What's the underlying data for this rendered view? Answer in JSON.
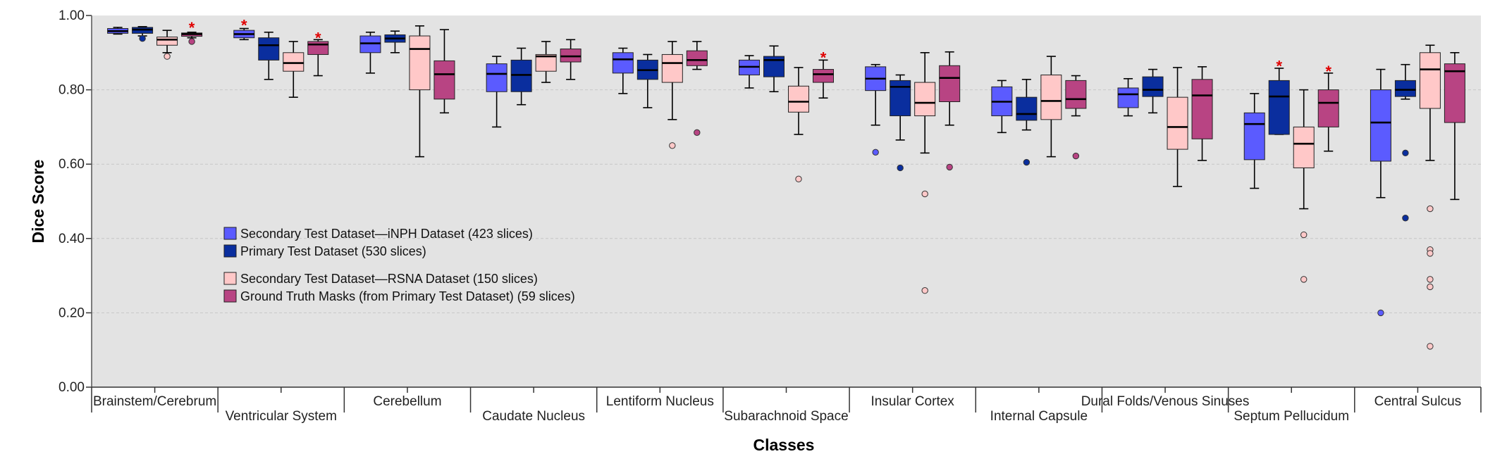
{
  "chart_data": {
    "type": "boxplot",
    "title": "",
    "xlabel": "Classes",
    "ylabel": "Dice Score",
    "ylim": [
      0,
      1
    ],
    "yticks": [
      "0.00",
      "0.20",
      "0.40",
      "0.60",
      "0.80",
      "1.00"
    ],
    "grid": true,
    "legend_position": "left-middle",
    "categories": [
      "Brainstem/Cerebrum",
      "Ventricular System",
      "Cerebellum",
      "Caudate Nucleus",
      "Lentiform Nucleus",
      "Subarachnoid Space",
      "Insular Cortex",
      "Internal Capsule",
      "Dural Folds/Venous Sinuses",
      "Septum Pellucidum",
      "Central Sulcus"
    ],
    "series": [
      {
        "name": "Secondary Test Dataset—iNPH Dataset (423 slices)",
        "color": "#5b5bff",
        "median_color": "#000000",
        "boxes": [
          {
            "whislo": 0.95,
            "q1": 0.952,
            "med": 0.958,
            "q3": 0.965,
            "whishi": 0.968,
            "fliers": []
          },
          {
            "whislo": 0.935,
            "q1": 0.94,
            "med": 0.95,
            "q3": 0.96,
            "whishi": 0.965,
            "fliers": []
          },
          {
            "whislo": 0.845,
            "q1": 0.9,
            "med": 0.925,
            "q3": 0.945,
            "whishi": 0.955,
            "fliers": []
          },
          {
            "whislo": 0.7,
            "q1": 0.795,
            "med": 0.843,
            "q3": 0.87,
            "whishi": 0.89,
            "fliers": []
          },
          {
            "whislo": 0.79,
            "q1": 0.845,
            "med": 0.882,
            "q3": 0.9,
            "whishi": 0.912,
            "fliers": []
          },
          {
            "whislo": 0.805,
            "q1": 0.84,
            "med": 0.862,
            "q3": 0.88,
            "whishi": 0.892,
            "fliers": []
          },
          {
            "whislo": 0.705,
            "q1": 0.798,
            "med": 0.83,
            "q3": 0.862,
            "whishi": 0.868,
            "fliers": [
              0.632
            ]
          },
          {
            "whislo": 0.685,
            "q1": 0.73,
            "med": 0.768,
            "q3": 0.808,
            "whishi": 0.825,
            "fliers": []
          },
          {
            "whislo": 0.73,
            "q1": 0.752,
            "med": 0.788,
            "q3": 0.805,
            "whishi": 0.83,
            "fliers": []
          },
          {
            "whislo": 0.535,
            "q1": 0.612,
            "med": 0.708,
            "q3": 0.738,
            "whishi": 0.79,
            "fliers": []
          },
          {
            "whislo": 0.51,
            "q1": 0.608,
            "med": 0.712,
            "q3": 0.8,
            "whishi": 0.855,
            "fliers": [
              0.2
            ]
          }
        ]
      },
      {
        "name": "Primary Test Dataset (530 slices)",
        "color": "#0a2e9e",
        "median_color": "#000000",
        "boxes": [
          {
            "whislo": 0.945,
            "q1": 0.952,
            "med": 0.962,
            "q3": 0.968,
            "whishi": 0.97,
            "fliers": [
              0.938
            ]
          },
          {
            "whislo": 0.828,
            "q1": 0.88,
            "med": 0.92,
            "q3": 0.94,
            "whishi": 0.955,
            "fliers": []
          },
          {
            "whislo": 0.9,
            "q1": 0.928,
            "med": 0.938,
            "q3": 0.948,
            "whishi": 0.958,
            "fliers": []
          },
          {
            "whislo": 0.76,
            "q1": 0.795,
            "med": 0.84,
            "q3": 0.88,
            "whishi": 0.912,
            "fliers": []
          },
          {
            "whislo": 0.752,
            "q1": 0.828,
            "med": 0.853,
            "q3": 0.88,
            "whishi": 0.895,
            "fliers": []
          },
          {
            "whislo": 0.795,
            "q1": 0.835,
            "med": 0.88,
            "q3": 0.89,
            "whishi": 0.918,
            "fliers": []
          },
          {
            "whislo": 0.665,
            "q1": 0.73,
            "med": 0.808,
            "q3": 0.825,
            "whishi": 0.84,
            "fliers": [
              0.59
            ]
          },
          {
            "whislo": 0.692,
            "q1": 0.718,
            "med": 0.735,
            "q3": 0.78,
            "whishi": 0.828,
            "fliers": [
              0.605
            ]
          },
          {
            "whislo": 0.738,
            "q1": 0.782,
            "med": 0.8,
            "q3": 0.835,
            "whishi": 0.855,
            "fliers": []
          },
          {
            "whislo": 0.68,
            "q1": 0.68,
            "med": 0.782,
            "q3": 0.825,
            "whishi": 0.858,
            "fliers": []
          },
          {
            "whislo": 0.775,
            "q1": 0.782,
            "med": 0.8,
            "q3": 0.825,
            "whishi": 0.868,
            "fliers": [
              0.63,
              0.455
            ]
          }
        ]
      },
      {
        "name": "Secondary Test Dataset—RSNA Dataset (150 slices)",
        "color": "#ffc8c8",
        "median_color": "#000000",
        "boxes": [
          {
            "whislo": 0.9,
            "q1": 0.92,
            "med": 0.935,
            "q3": 0.942,
            "whishi": 0.96,
            "fliers": [
              0.89
            ]
          },
          {
            "whislo": 0.78,
            "q1": 0.85,
            "med": 0.872,
            "q3": 0.9,
            "whishi": 0.93,
            "fliers": []
          },
          {
            "whislo": 0.62,
            "q1": 0.8,
            "med": 0.91,
            "q3": 0.945,
            "whishi": 0.972,
            "fliers": []
          },
          {
            "whislo": 0.82,
            "q1": 0.85,
            "med": 0.89,
            "q3": 0.895,
            "whishi": 0.93,
            "fliers": []
          },
          {
            "whislo": 0.72,
            "q1": 0.82,
            "med": 0.872,
            "q3": 0.895,
            "whishi": 0.93,
            "fliers": [
              0.65
            ]
          },
          {
            "whislo": 0.68,
            "q1": 0.74,
            "med": 0.768,
            "q3": 0.81,
            "whishi": 0.86,
            "fliers": [
              0.56
            ]
          },
          {
            "whislo": 0.63,
            "q1": 0.73,
            "med": 0.765,
            "q3": 0.82,
            "whishi": 0.9,
            "fliers": [
              0.52,
              0.26
            ]
          },
          {
            "whislo": 0.62,
            "q1": 0.72,
            "med": 0.77,
            "q3": 0.84,
            "whishi": 0.89,
            "fliers": []
          },
          {
            "whislo": 0.54,
            "q1": 0.64,
            "med": 0.7,
            "q3": 0.78,
            "whishi": 0.86,
            "fliers": []
          },
          {
            "whislo": 0.48,
            "q1": 0.59,
            "med": 0.655,
            "q3": 0.7,
            "whishi": 0.8,
            "fliers": [
              0.41,
              0.29
            ]
          },
          {
            "whislo": 0.61,
            "q1": 0.75,
            "med": 0.855,
            "q3": 0.9,
            "whishi": 0.92,
            "fliers": [
              0.48,
              0.37,
              0.36,
              0.29,
              0.27,
              0.11
            ]
          }
        ]
      },
      {
        "name": "Ground Truth Masks (from Primary Test Dataset) (59 slices)",
        "color": "#b84483",
        "median_color": "#000000",
        "boxes": [
          {
            "whislo": 0.94,
            "q1": 0.944,
            "med": 0.95,
            "q3": 0.953,
            "whishi": 0.955,
            "fliers": [
              0.93
            ]
          },
          {
            "whislo": 0.838,
            "q1": 0.895,
            "med": 0.922,
            "q3": 0.93,
            "whishi": 0.935,
            "fliers": []
          },
          {
            "whislo": 0.738,
            "q1": 0.775,
            "med": 0.842,
            "q3": 0.878,
            "whishi": 0.962,
            "fliers": []
          },
          {
            "whislo": 0.828,
            "q1": 0.875,
            "med": 0.89,
            "q3": 0.91,
            "whishi": 0.935,
            "fliers": []
          },
          {
            "whislo": 0.855,
            "q1": 0.865,
            "med": 0.88,
            "q3": 0.905,
            "whishi": 0.93,
            "fliers": [
              0.685
            ]
          },
          {
            "whislo": 0.778,
            "q1": 0.82,
            "med": 0.842,
            "q3": 0.855,
            "whishi": 0.88,
            "fliers": []
          },
          {
            "whislo": 0.705,
            "q1": 0.768,
            "med": 0.832,
            "q3": 0.865,
            "whishi": 0.902,
            "fliers": [
              0.592
            ]
          },
          {
            "whislo": 0.73,
            "q1": 0.75,
            "med": 0.775,
            "q3": 0.825,
            "whishi": 0.838,
            "fliers": [
              0.622
            ]
          },
          {
            "whislo": 0.61,
            "q1": 0.668,
            "med": 0.785,
            "q3": 0.828,
            "whishi": 0.862,
            "fliers": []
          },
          {
            "whislo": 0.635,
            "q1": 0.7,
            "med": 0.765,
            "q3": 0.8,
            "whishi": 0.845,
            "fliers": []
          },
          {
            "whislo": 0.505,
            "q1": 0.712,
            "med": 0.85,
            "q3": 0.87,
            "whishi": 0.9,
            "fliers": []
          }
        ]
      }
    ],
    "significance_markers": [
      {
        "category": 0,
        "series": 3,
        "y": 0.975,
        "label": "*"
      },
      {
        "category": 1,
        "series": 0,
        "y": 0.982,
        "label": "*"
      },
      {
        "category": 1,
        "series": 3,
        "y": 0.948,
        "label": "*"
      },
      {
        "category": 5,
        "series": 3,
        "y": 0.895,
        "label": "*"
      },
      {
        "category": 9,
        "series": 1,
        "y": 0.872,
        "label": "*"
      },
      {
        "category": 9,
        "series": 3,
        "y": 0.858,
        "label": "*"
      }
    ]
  },
  "colors": {
    "plot_background": "#e3e3e3",
    "grid": "#c6c6c6",
    "whisker": "#000000",
    "star": "#e00000"
  }
}
